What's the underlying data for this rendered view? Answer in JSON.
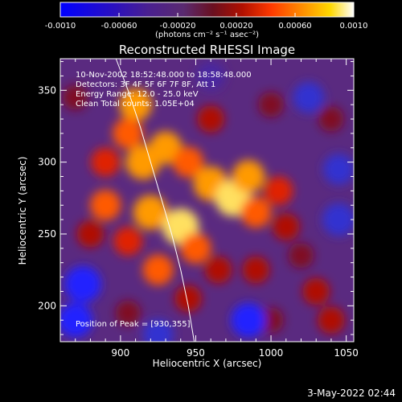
{
  "chart_data": {
    "type": "heatmap",
    "title": "Reconstructed RHESSI Image",
    "xlabel": "Heliocentric X (arcsec)",
    "ylabel": "Heliocentric Y (arcsec)",
    "xlim": [
      860,
      1055
    ],
    "ylim": [
      175,
      372
    ],
    "x_ticks": [
      900,
      950,
      1000,
      1050
    ],
    "y_ticks": [
      200,
      250,
      300,
      350
    ],
    "colorbar": {
      "range": [
        -0.001,
        0.001
      ],
      "tick_values": [
        -0.001,
        -0.0006,
        -0.0002,
        0.0002,
        0.0006,
        0.001
      ],
      "tick_labels": [
        "-0.0010",
        "-0.00060",
        "-0.00020",
        "0.00020",
        "0.00060",
        "0.0010"
      ],
      "unit_label": "(photons cm⁻² s⁻¹ asec⁻²)",
      "colormap": [
        "#0000ff",
        "#3a1a8a",
        "#5a2a80",
        "#8a1020",
        "#cc2000",
        "#ff6a00",
        "#ffb400",
        "#ffff80",
        "#ffffff"
      ]
    },
    "limb_curve": [
      [
        897,
        372
      ],
      [
        905,
        350
      ],
      [
        913,
        325
      ],
      [
        920,
        300
      ],
      [
        927,
        275
      ],
      [
        934,
        250
      ],
      [
        940,
        225
      ],
      [
        945,
        200
      ],
      [
        949,
        175
      ]
    ],
    "peak": [
      930,
      355
    ],
    "emission_blobs": [
      {
        "x": 910,
        "y": 340,
        "v": 0.0007
      },
      {
        "x": 905,
        "y": 320,
        "v": 0.0006
      },
      {
        "x": 915,
        "y": 300,
        "v": 0.0008
      },
      {
        "x": 930,
        "y": 310,
        "v": 0.0007
      },
      {
        "x": 945,
        "y": 300,
        "v": 0.0006
      },
      {
        "x": 960,
        "y": 285,
        "v": 0.0008
      },
      {
        "x": 975,
        "y": 275,
        "v": 0.0009
      },
      {
        "x": 985,
        "y": 290,
        "v": 0.0007
      },
      {
        "x": 990,
        "y": 265,
        "v": 0.0006
      },
      {
        "x": 1005,
        "y": 280,
        "v": 0.0005
      },
      {
        "x": 1010,
        "y": 255,
        "v": 0.0004
      },
      {
        "x": 920,
        "y": 265,
        "v": 0.0008
      },
      {
        "x": 940,
        "y": 255,
        "v": 0.0009
      },
      {
        "x": 950,
        "y": 240,
        "v": 0.0006
      },
      {
        "x": 905,
        "y": 245,
        "v": 0.0005
      },
      {
        "x": 890,
        "y": 270,
        "v": 0.0006
      },
      {
        "x": 880,
        "y": 250,
        "v": 0.0004
      },
      {
        "x": 925,
        "y": 225,
        "v": 0.0006
      },
      {
        "x": 965,
        "y": 225,
        "v": 0.0004
      },
      {
        "x": 990,
        "y": 225,
        "v": 0.0004
      },
      {
        "x": 1030,
        "y": 210,
        "v": 0.0004
      },
      {
        "x": 1020,
        "y": 235,
        "v": 0.0003
      },
      {
        "x": 945,
        "y": 205,
        "v": 0.0004
      },
      {
        "x": 1040,
        "y": 190,
        "v": 0.0004
      },
      {
        "x": 1000,
        "y": 190,
        "v": 0.0003
      },
      {
        "x": 905,
        "y": 195,
        "v": 0.0003
      },
      {
        "x": 890,
        "y": 300,
        "v": 0.0005
      },
      {
        "x": 960,
        "y": 330,
        "v": 0.0004
      },
      {
        "x": 1040,
        "y": 330,
        "v": 0.0003
      },
      {
        "x": 1000,
        "y": 340,
        "v": 0.0003
      },
      {
        "x": 870,
        "y": 345,
        "v": 0.0003
      }
    ],
    "negative_blobs": [
      {
        "x": 875,
        "y": 215,
        "v": -0.0009
      },
      {
        "x": 870,
        "y": 190,
        "v": -0.0008
      },
      {
        "x": 985,
        "y": 190,
        "v": -0.0008
      },
      {
        "x": 1045,
        "y": 260,
        "v": -0.0007
      },
      {
        "x": 1025,
        "y": 345,
        "v": -0.0006
      },
      {
        "x": 1045,
        "y": 295,
        "v": -0.0006
      },
      {
        "x": 960,
        "y": 360,
        "v": -0.0005
      },
      {
        "x": 925,
        "y": 180,
        "v": -0.0006
      }
    ]
  },
  "annotations": {
    "time_range": "10-Nov-2002 18:52:48.000 to 18:58:48.000",
    "detectors": "Detectors: 3F 4F 5F 6F 7F 8F, Att 1",
    "energy_range": "Energy Range: 12.0 - 25.0 keV",
    "method": "Clean     Total counts: 1.05E+04",
    "peak": "Position of Peak = [930,355]"
  },
  "footer": {
    "timestamp": "3-May-2022 02:44"
  }
}
